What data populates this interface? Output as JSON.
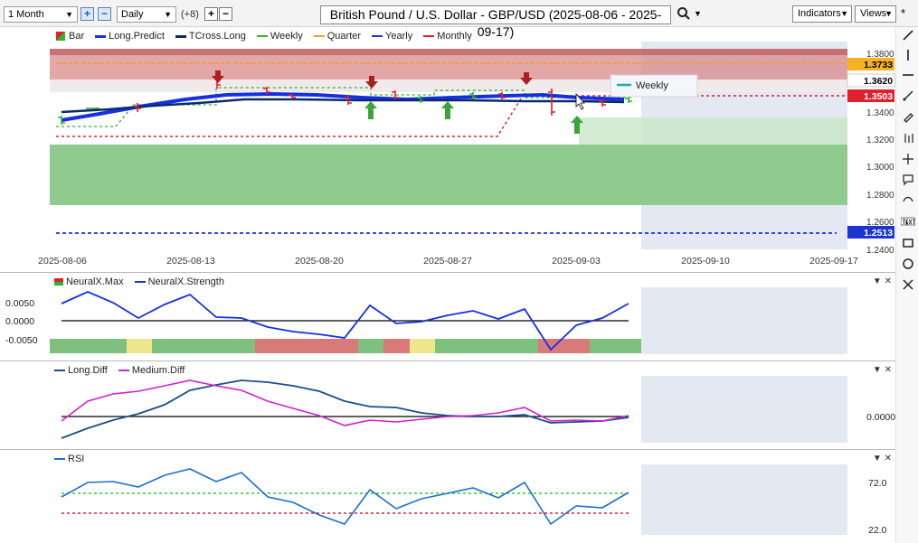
{
  "toolbar": {
    "range_value": "1 Month",
    "interval_value": "Daily",
    "offset_label": "(+8)",
    "plus_label": "+",
    "minus_label": "−",
    "title": "British Pound / U.S. Dollar - GBP/USD (2025-08-06 - 2025-09-17)",
    "indicators_label": "Indicators",
    "views_label": "Views",
    "pin_label": "*"
  },
  "price_pane": {
    "legend": [
      "Bar",
      "Long.Predict",
      "TCross.Long",
      "Weekly",
      "Quarter",
      "Yearly",
      "Monthly"
    ],
    "tooltip_label": "Weekly",
    "price_ticks": [
      "1.3800",
      "1.3400",
      "1.3200",
      "1.3000",
      "1.2800",
      "1.2600",
      "1.2400"
    ],
    "price_tags": [
      {
        "label": "1.3733",
        "bg": "#f7b21e",
        "fg": "#000000"
      },
      {
        "label": "1.3620",
        "bg": "#ffffff",
        "fg": "#000000"
      },
      {
        "label": "1.3503",
        "bg": "#e0202a",
        "fg": "#ffffff"
      },
      {
        "label": "1.2513",
        "bg": "#1c35d0",
        "fg": "#ffffff"
      }
    ],
    "date_ticks": [
      "2025-08-06",
      "2025-08-13",
      "2025-08-20",
      "2025-08-27",
      "2025-09-03",
      "2025-09-10",
      "2025-09-17"
    ]
  },
  "neural_pane": {
    "legend": [
      "NeuralX.Max",
      "NeuralX.Strength"
    ],
    "ticks": [
      "0.0050",
      "0.0000",
      "-0.0050"
    ]
  },
  "diff_pane": {
    "legend": [
      "Long.Diff",
      "Medium.Diff"
    ],
    "ticks": [
      "0.0000"
    ]
  },
  "rsi_pane": {
    "legend": [
      "RSI"
    ],
    "ticks": [
      "72.0",
      "22.0"
    ]
  },
  "colors": {
    "long_predict": "#1530e0",
    "tcross_long": "#0a2a6b",
    "weekly": "#2bb52b",
    "quarter": "#f0a020",
    "yearly": "#1c35d0",
    "monthly": "#e0202a",
    "green_zone": "#8fcb8f",
    "red_zone": "#d98a8a",
    "future_zone": "#e4e8f2"
  },
  "sidebar_tools": [
    "line-tool-icon",
    "vertical-line-icon",
    "horizontal-line-icon",
    "ray-tool-icon",
    "pencil-icon",
    "channel-icon",
    "crosshair-icon",
    "callout-icon",
    "undo-curve-icon",
    "text-tool-icon",
    "rectangle-icon",
    "circle-icon",
    "cross-icon"
  ]
}
